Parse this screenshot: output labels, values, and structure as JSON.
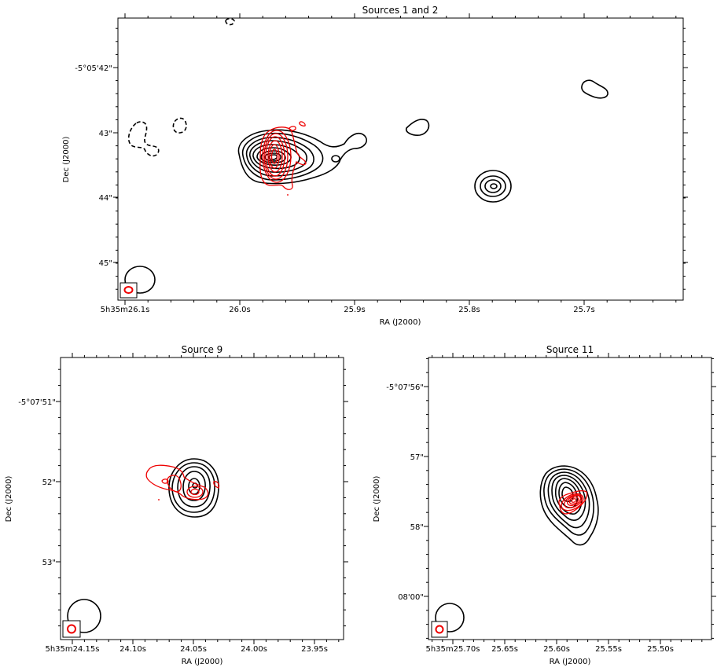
{
  "chart_data": [
    {
      "type": "contour",
      "title": "Sources 1 and 2",
      "xlabel": "RA (J2000)",
      "ylabel": "Dec (J2000)",
      "x_ticks": [
        "5h35m26.1s",
        "26.0s",
        "25.9s",
        "25.8s",
        "25.7s"
      ],
      "y_ticks": [
        "-5°05'42\"",
        "43\"",
        "44\"",
        "45\""
      ],
      "black_contour_peaks": [
        {
          "ra": "25.97s",
          "dec": "43.4\"",
          "levels": 9
        },
        {
          "ra": "25.78s",
          "dec": "43.8\"",
          "levels": 4
        }
      ],
      "red_contour_peaks": [
        {
          "ra": "25.97s",
          "dec": "43.4\"",
          "levels": 7
        }
      ],
      "negative_contours": "dashed",
      "beams": [
        "black (bottom-left)",
        "red (boxed, bottom-left)"
      ]
    },
    {
      "type": "contour",
      "title": "Source 9",
      "xlabel": "RA (J2000)",
      "ylabel": "Dec (J2000)",
      "x_ticks": [
        "5h35m24.15s",
        "24.10s",
        "24.05s",
        "24.00s",
        "23.95s"
      ],
      "y_ticks": [
        "-5°07'51\"",
        "52\"",
        "53\""
      ],
      "black_contour_peaks": [
        {
          "ra": "24.05s",
          "dec": "52.1\"",
          "levels": 5
        }
      ],
      "red_contour_peaks": [
        {
          "ra": "24.05s",
          "dec": "52.1\"",
          "levels": 3
        }
      ],
      "beams": [
        "black (bottom-left)",
        "red (boxed, bottom-left)"
      ]
    },
    {
      "type": "contour",
      "title": "Source 11",
      "xlabel": "RA (J2000)",
      "ylabel": "Dec (J2000)",
      "x_ticks": [
        "5h35m25.70s",
        "25.65s",
        "25.60s",
        "25.55s",
        "25.50s"
      ],
      "y_ticks": [
        "-5°07'56\"",
        "57\"",
        "58\"",
        "08'00\""
      ],
      "black_contour_peaks": [
        {
          "ra": "25.58s",
          "dec": "57.6\"",
          "levels": 9
        }
      ],
      "red_contour_peaks": [
        {
          "ra": "25.57s",
          "dec": "57.7\"",
          "levels": 8
        }
      ],
      "beams": [
        "black (bottom-left)",
        "red (boxed, bottom-left)"
      ]
    }
  ],
  "colors": {
    "black_contours": "#000000",
    "red_contours": "#ee0000"
  }
}
